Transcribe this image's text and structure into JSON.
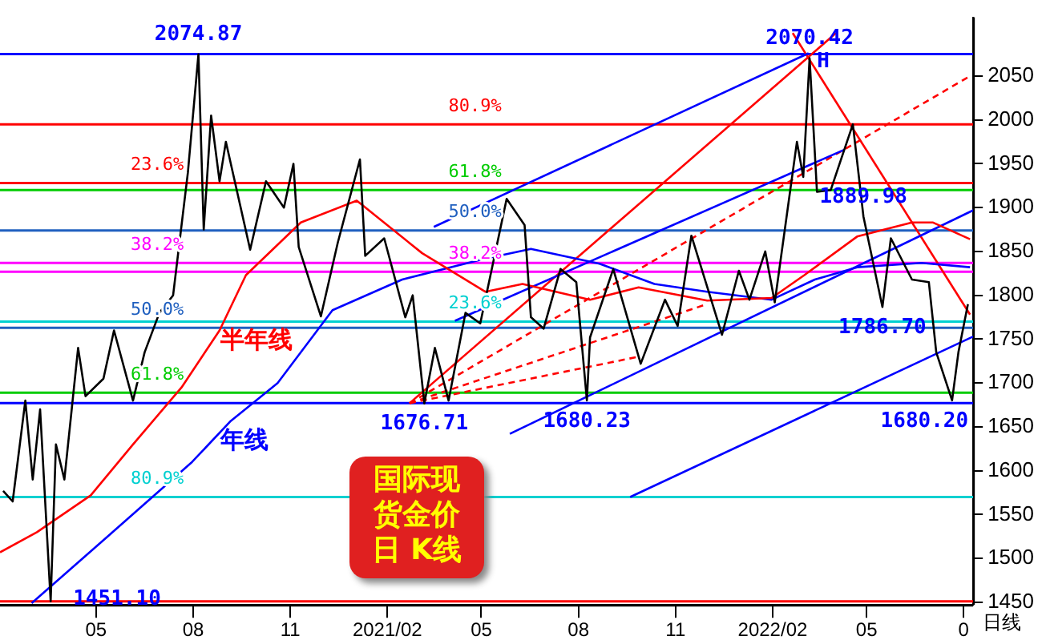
{
  "chart_data": {
    "type": "line",
    "title": "国际现货金价日 K线",
    "xlabel": "日线",
    "xlim": [
      "2020-01-31",
      "2022-08-10"
    ],
    "ylim": [
      1447,
      2117
    ],
    "xticks": [
      {
        "value": "2020-05-01",
        "label": "05"
      },
      {
        "value": "2020-08-01",
        "label": "08"
      },
      {
        "value": "2020-11-01",
        "label": "11"
      },
      {
        "value": "2021-02-01",
        "label": "2021/02"
      },
      {
        "value": "2021-05-01",
        "label": "05"
      },
      {
        "value": "2021-08-01",
        "label": "08"
      },
      {
        "value": "2021-11-01",
        "label": "11"
      },
      {
        "value": "2022-02-01",
        "label": "2022/02"
      },
      {
        "value": "2022-05-01",
        "label": "05"
      },
      {
        "value": "2022-08-01",
        "label": "0"
      }
    ],
    "yticks": [
      1450,
      1500,
      1550,
      1600,
      1650,
      1700,
      1750,
      1800,
      1850,
      1900,
      1950,
      2000,
      2050
    ],
    "grid": false,
    "legend": false,
    "marker": "none",
    "series": [
      {
        "color": "#000000",
        "line_style": "solid",
        "x": [
          "2020-02-03",
          "2020-02-12",
          "2020-02-24",
          "2020-03-02",
          "2020-03-09",
          "2020-03-19",
          "2020-03-24",
          "2020-04-01",
          "2020-04-14",
          "2020-04-21",
          "2020-05-08",
          "2020-05-18",
          "2020-06-05",
          "2020-06-16",
          "2020-06-30",
          "2020-07-13",
          "2020-07-27",
          "2020-08-06",
          "2020-08-11",
          "2020-08-18",
          "2020-08-26",
          "2020-09-01",
          "2020-09-24",
          "2020-10-09",
          "2020-10-26",
          "2020-11-04",
          "2020-11-09",
          "2020-11-30",
          "2020-12-16",
          "2021-01-06",
          "2021-01-11",
          "2021-01-29",
          "2021-02-18",
          "2021-02-25",
          "2021-03-08",
          "2021-03-18",
          "2021-03-31",
          "2021-04-16",
          "2021-04-30",
          "2021-05-25",
          "2021-06-11",
          "2021-06-17",
          "2021-06-29",
          "2021-07-15",
          "2021-07-30",
          "2021-08-09",
          "2021-08-12",
          "2021-09-03",
          "2021-09-29",
          "2021-10-22",
          "2021-11-03",
          "2021-11-16",
          "2021-12-15",
          "2021-12-31",
          "2022-01-10",
          "2022-01-25",
          "2022-02-03",
          "2022-02-24",
          "2022-03-02",
          "2022-03-08",
          "2022-03-15",
          "2022-03-28",
          "2022-04-18",
          "2022-04-28",
          "2022-05-16",
          "2022-05-24",
          "2022-06-13",
          "2022-06-29",
          "2022-07-06",
          "2022-07-21",
          "2022-07-27",
          "2022-08-05"
        ],
        "values": [
          1577,
          1565,
          1680,
          1590,
          1670,
          1451.1,
          1630,
          1590,
          1740,
          1685,
          1705,
          1760,
          1680,
          1735,
          1780,
          1800,
          1940,
          2074.87,
          1875,
          2005,
          1930,
          1975,
          1852,
          1930,
          1900,
          1950,
          1855,
          1776,
          1860,
          1955,
          1845,
          1865,
          1775,
          1800,
          1676.71,
          1740,
          1680,
          1780,
          1768,
          1910,
          1880,
          1775,
          1762,
          1830,
          1815,
          1680.23,
          1752,
          1830,
          1722,
          1795,
          1765,
          1868,
          1755,
          1828,
          1795,
          1850,
          1792,
          1975,
          1935,
          2070.42,
          1918,
          1920,
          1995,
          1889.98,
          1786.7,
          1865,
          1818,
          1815,
          1735,
          1680.2,
          1735,
          1790
        ]
      },
      {
        "name": "半年线",
        "color": "#ff0000",
        "line_style": "solid",
        "x": [
          "2020-01-31",
          "2020-03-06",
          "2020-04-26",
          "2020-06-05",
          "2020-07-21",
          "2020-08-26",
          "2020-09-20",
          "2020-11-11",
          "2021-01-03",
          "2021-03-06",
          "2021-05-05",
          "2021-06-09",
          "2021-08-12",
          "2021-09-27",
          "2021-12-01",
          "2022-01-31",
          "2022-03-03",
          "2022-04-22",
          "2022-06-13",
          "2022-07-03",
          "2022-08-07"
        ],
        "values": [
          1507,
          1530,
          1572,
          1630,
          1695,
          1760,
          1823,
          1883,
          1908,
          1848,
          1804,
          1813,
          1795,
          1809,
          1794,
          1797,
          1823,
          1867,
          1883,
          1883,
          1864
        ]
      },
      {
        "name": "年线",
        "color": "#0000ff",
        "line_style": "solid",
        "x": [
          "2020-03-01",
          "2020-05-12",
          "2020-07-31",
          "2020-09-05",
          "2020-10-20",
          "2020-12-11",
          "2021-02-15",
          "2021-05-02",
          "2021-06-17",
          "2021-08-21",
          "2021-10-12",
          "2021-12-01",
          "2022-01-31",
          "2022-03-13",
          "2022-04-22",
          "2022-06-22",
          "2022-08-07"
        ],
        "values": [
          1449,
          1525,
          1610,
          1656,
          1700,
          1783,
          1818,
          1841,
          1853,
          1836,
          1813,
          1804,
          1795,
          1818,
          1832,
          1837,
          1832
        ]
      },
      {
        "color": "#0000ff",
        "line_style": "solid",
        "x": [
          "2021-03-17",
          "2022-03-07"
        ],
        "values": [
          1878,
          2076
        ]
      },
      {
        "color": "#0000ff",
        "line_style": "solid",
        "x": [
          "2021-04-06",
          "2022-04-10"
        ],
        "values": [
          1771,
          1966
        ]
      },
      {
        "color": "#0000ff",
        "line_style": "solid",
        "x": [
          "2021-05-28",
          "2022-08-10"
        ],
        "values": [
          1642,
          1897
        ]
      },
      {
        "color": "#0000ff",
        "line_style": "solid",
        "x": [
          "2021-09-19",
          "2022-08-10"
        ],
        "values": [
          1570,
          1753
        ]
      },
      {
        "color": "#ff0000",
        "line_style": "solid",
        "x": [
          "2021-02-22",
          "2022-04-02"
        ],
        "values": [
          1677,
          2099
        ]
      },
      {
        "color": "#ff0000",
        "line_style": "dashed",
        "x": [
          "2021-02-22",
          "2022-08-07"
        ],
        "values": [
          1677,
          2050
        ]
      },
      {
        "color": "#ff0000",
        "line_style": "dashed",
        "x": [
          "2021-02-22",
          "2021-12-01"
        ],
        "values": [
          1677,
          1790
        ]
      },
      {
        "color": "#ff0000",
        "line_style": "dashed",
        "x": [
          "2021-02-22",
          "2021-09-27"
        ],
        "values": [
          1677,
          1730
        ]
      },
      {
        "color": "#ff0000",
        "line_style": "solid",
        "x": [
          "2022-02-20",
          "2022-08-07"
        ],
        "values": [
          2099,
          1778
        ]
      }
    ],
    "ref_lines": [
      {
        "axis": "y",
        "value": 2075,
        "color": "#0000ff"
      },
      {
        "axis": "y",
        "value": 1451,
        "color": "#ff0000"
      },
      {
        "axis": "y",
        "value": 1677,
        "color": "#0000ff"
      },
      {
        "axis": "y",
        "value": 1928,
        "color": "#ff0000"
      },
      {
        "axis": "y",
        "value": 1837,
        "color": "#ff00ff"
      },
      {
        "axis": "y",
        "value": 1763,
        "color": "#1f5fbf"
      },
      {
        "axis": "y",
        "value": 1689,
        "color": "#00cc00"
      },
      {
        "axis": "y",
        "value": 1570,
        "color": "#00d0d0"
      },
      {
        "axis": "y",
        "value": 1995,
        "color": "#ff0000"
      },
      {
        "axis": "y",
        "value": 1920,
        "color": "#00cc00"
      },
      {
        "axis": "y",
        "value": 1874,
        "color": "#1f5fbf"
      },
      {
        "axis": "y",
        "value": 1827,
        "color": "#ff00ff"
      },
      {
        "axis": "y",
        "value": 1770,
        "color": "#00d0d0"
      }
    ],
    "annotations": [
      {
        "text": "2074.87",
        "x": "2020-08-06",
        "y": 2074.87
      },
      {
        "text": "2070.42",
        "x": "2022-03-08",
        "y": 2070.42
      },
      {
        "text": "H",
        "x": "2022-03-21",
        "y": 2044
      },
      {
        "text": "1889.98",
        "x": "2022-04-28",
        "y": 1889.98
      },
      {
        "text": "1786.70",
        "x": "2022-05-16",
        "y": 1786.7
      },
      {
        "text": "1676.71",
        "x": "2021-03-08",
        "y": 1676.71
      },
      {
        "text": "1680.23",
        "x": "2021-08-09",
        "y": 1680.23
      },
      {
        "text": "1680.20",
        "x": "2022-07-21",
        "y": 1680.2
      },
      {
        "text": "1451.10",
        "x": "2020-03-19",
        "y": 1451.1
      },
      {
        "text": "23.6%",
        "x": "2020-06-28",
        "y": 1928
      },
      {
        "text": "38.2%",
        "x": "2020-06-28",
        "y": 1837
      },
      {
        "text": "50.0%",
        "x": "2020-06-28",
        "y": 1763
      },
      {
        "text": "61.8%",
        "x": "2020-06-28",
        "y": 1689
      },
      {
        "text": "80.9%",
        "x": "2020-06-28",
        "y": 1570
      },
      {
        "text": "80.9%",
        "x": "2021-04-25",
        "y": 1995
      },
      {
        "text": "61.8%",
        "x": "2021-04-25",
        "y": 1920
      },
      {
        "text": "50.0%",
        "x": "2021-04-25",
        "y": 1874
      },
      {
        "text": "38.2%",
        "x": "2021-04-25",
        "y": 1827
      },
      {
        "text": "23.6%",
        "x": "2021-04-25",
        "y": 1770
      }
    ]
  }
}
